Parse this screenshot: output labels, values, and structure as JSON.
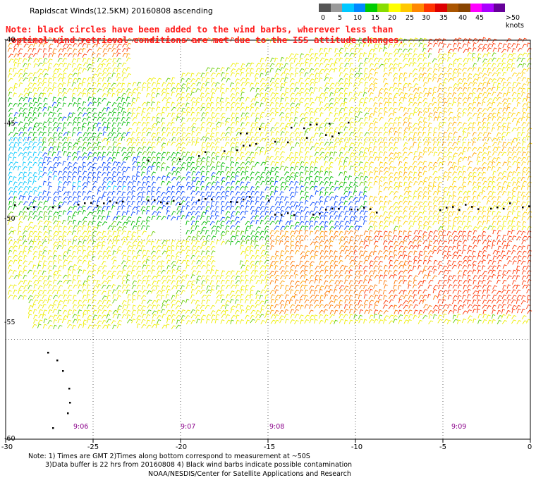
{
  "title": "Rapidscat Winds(12.5KM) 20160808 ascending",
  "note_line1": "Note: black circles have been added to the wind barbs, wherever less than",
  "note_line2": "optimal wind retrieval conditions are met due to the ISS attitude changes.",
  "colorbar": {
    "ticks": [
      "0",
      "5",
      "10",
      "15",
      "20",
      "25",
      "30",
      "35",
      "40",
      "45",
      ">50 knots"
    ],
    "colors": [
      "#555555",
      "#9a9a9a",
      "#00c8ff",
      "#0088ff",
      "#00cc00",
      "#88dd00",
      "#ffff00",
      "#ffc800",
      "#ff8800",
      "#ff3300",
      "#dd0000",
      "#aa5500",
      "#884400",
      "#ff00ff",
      "#aa00ff",
      "#660099"
    ]
  },
  "map": {
    "lat_labels": [
      "-40",
      "-45",
      "-50",
      "-55",
      "-60"
    ],
    "lon_labels": [
      "-30",
      "-25",
      "-20",
      "-15",
      "-10",
      "-5",
      "0"
    ],
    "times": [
      "9:06",
      "9:07",
      "9:08",
      "9:09"
    ]
  },
  "footer": {
    "line1": "Note: 1) Times are GMT 2)Times along bottom correspond to measurement at ~50S",
    "line2": "3)Data buffer is 22 hrs from 20160808 4) Black wind barbs indicate possible contamination",
    "line3": "NOAA/NESDIS/Center for Satellite Applications and Research"
  }
}
